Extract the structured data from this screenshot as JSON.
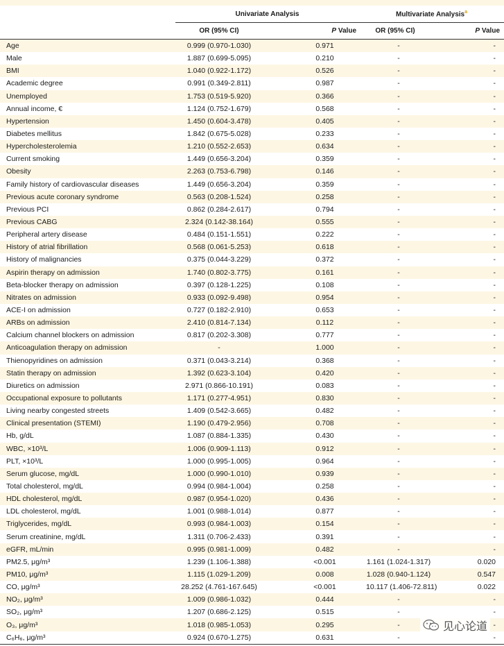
{
  "header": {
    "univariate": "Univariate Analysis",
    "multivariate": "Multivariate Analysis",
    "multivariate_mark": "a",
    "or_ci": "OR (95% CI)",
    "p_value_p": "P",
    "p_value_rest": " Value"
  },
  "rows": [
    {
      "var": "Age",
      "or": "0.999 (0.970-1.030)",
      "p": "0.971",
      "mor": "-",
      "mp": "-"
    },
    {
      "var": "Male",
      "or": "1.887 (0.699-5.095)",
      "p": "0.210",
      "mor": "-",
      "mp": "-"
    },
    {
      "var": "BMI",
      "or": "1.040 (0.922-1.172)",
      "p": "0.526",
      "mor": "-",
      "mp": "-"
    },
    {
      "var": "Academic degree",
      "or": "0.991 (0.349-2.811)",
      "p": "0.987",
      "mor": "-",
      "mp": "-"
    },
    {
      "var": "Unemployed",
      "or": "1.753 (0.519-5.920)",
      "p": "0.366",
      "mor": "-",
      "mp": "-"
    },
    {
      "var": "Annual income, €",
      "or": "1.124 (0.752-1.679)",
      "p": "0.568",
      "mor": "-",
      "mp": "-"
    },
    {
      "var": "Hypertension",
      "or": "1.450 (0.604-3.478)",
      "p": "0.405",
      "mor": "-",
      "mp": "-"
    },
    {
      "var": "Diabetes mellitus",
      "or": "1.842 (0.675-5.028)",
      "p": "0.233",
      "mor": "-",
      "mp": "-"
    },
    {
      "var": "Hypercholesterolemia",
      "or": "1.210 (0.552-2.653)",
      "p": "0.634",
      "mor": "-",
      "mp": "-"
    },
    {
      "var": "Current smoking",
      "or": "1.449 (0.656-3.204)",
      "p": "0.359",
      "mor": "-",
      "mp": "-"
    },
    {
      "var": "Obesity",
      "or": "2.263 (0.753-6.798)",
      "p": "0.146",
      "mor": "-",
      "mp": "-"
    },
    {
      "var": "Family history of cardiovascular diseases",
      "or": "1.449 (0.656-3.204)",
      "p": "0.359",
      "mor": "-",
      "mp": "-"
    },
    {
      "var": "Previous acute coronary syndrome",
      "or": "0.563 (0.208-1.524)",
      "p": "0.258",
      "mor": "-",
      "mp": "-"
    },
    {
      "var": "Previous PCI",
      "or": "0.862 (0.284-2.617)",
      "p": "0.794",
      "mor": "-",
      "mp": "-"
    },
    {
      "var": "Previous CABG",
      "or": "2.324 (0.142-38.164)",
      "p": "0.555",
      "mor": "-",
      "mp": "-"
    },
    {
      "var": "Peripheral artery disease",
      "or": "0.484 (0.151-1.551)",
      "p": "0.222",
      "mor": "-",
      "mp": "-"
    },
    {
      "var": "History of atrial fibrillation",
      "or": "0.568 (0.061-5.253)",
      "p": "0.618",
      "mor": "-",
      "mp": "-"
    },
    {
      "var": "History of malignancies",
      "or": "0.375 (0.044-3.229)",
      "p": "0.372",
      "mor": "-",
      "mp": "-"
    },
    {
      "var": "Aspirin therapy on admission",
      "or": "1.740 (0.802-3.775)",
      "p": "0.161",
      "mor": "-",
      "mp": "-"
    },
    {
      "var": "Beta-blocker therapy on admission",
      "or": "0.397 (0.128-1.225)",
      "p": "0.108",
      "mor": "-",
      "mp": "-"
    },
    {
      "var": "Nitrates on admission",
      "or": "0.933 (0.092-9.498)",
      "p": "0.954",
      "mor": "-",
      "mp": "-"
    },
    {
      "var": "ACE-I on admission",
      "or": "0.727 (0.182-2.910)",
      "p": "0.653",
      "mor": "-",
      "mp": "-"
    },
    {
      "var": "ARBs on admission",
      "or": "2.410 (0.814-7.134)",
      "p": "0.112",
      "mor": "-",
      "mp": "-"
    },
    {
      "var": "Calcium channel blockers on admission",
      "or": "0.817 (0.202-3.308)",
      "p": "0.777",
      "mor": "-",
      "mp": "-"
    },
    {
      "var": "Anticoagulation therapy on admission",
      "or": "-",
      "p": "1.000",
      "mor": "-",
      "mp": "-"
    },
    {
      "var": "Thienopyridines on admission",
      "or": "0.371 (0.043-3.214)",
      "p": "0.368",
      "mor": "-",
      "mp": "-"
    },
    {
      "var": "Statin therapy on admission",
      "or": "1.392 (0.623-3.104)",
      "p": "0.420",
      "mor": "-",
      "mp": "-"
    },
    {
      "var": "Diuretics on admission",
      "or": "2.971 (0.866-10.191)",
      "p": "0.083",
      "mor": "-",
      "mp": "-"
    },
    {
      "var": "Occupational exposure to pollutants",
      "or": "1.171 (0.277-4.951)",
      "p": "0.830",
      "mor": "-",
      "mp": "-"
    },
    {
      "var": "Living nearby congested streets",
      "or": "1.409 (0.542-3.665)",
      "p": "0.482",
      "mor": "-",
      "mp": "-"
    },
    {
      "var": "Clinical presentation (STEMI)",
      "or": "1.190 (0.479-2.956)",
      "p": "0.708",
      "mor": "-",
      "mp": "-"
    },
    {
      "var": "Hb, g/dL",
      "or": "1.087 (0.884-1.335)",
      "p": "0.430",
      "mor": "-",
      "mp": "-"
    },
    {
      "var": "WBC, ×10³/L",
      "or": "1.006 (0.909-1.113)",
      "p": "0.912",
      "mor": "-",
      "mp": "-"
    },
    {
      "var": "PLT, ×10³/L",
      "or": "1.000 (0.995-1.005)",
      "p": "0.964",
      "mor": "-",
      "mp": "-"
    },
    {
      "var": "Serum glucose, mg/dL",
      "or": "1.000 (0.990-1.010)",
      "p": "0.939",
      "mor": "-",
      "mp": "-"
    },
    {
      "var": "Total cholesterol, mg/dL",
      "or": "0.994 (0.984-1.004)",
      "p": "0.258",
      "mor": "-",
      "mp": "-"
    },
    {
      "var": "HDL cholesterol, mg/dL",
      "or": "0.987 (0.954-1.020)",
      "p": "0.436",
      "mor": "-",
      "mp": "-"
    },
    {
      "var": "LDL cholesterol, mg/dL",
      "or": "1.001 (0.988-1.014)",
      "p": "0.877",
      "mor": "-",
      "mp": "-"
    },
    {
      "var": "Triglycerides, mg/dL",
      "or": "0.993 (0.984-1.003)",
      "p": "0.154",
      "mor": "-",
      "mp": "-"
    },
    {
      "var": "Serum creatinine, mg/dL",
      "or": "1.311 (0.706-2.433)",
      "p": "0.391",
      "mor": "-",
      "mp": "-"
    },
    {
      "var": "eGFR, mL/min",
      "or": "0.995 (0.981-1.009)",
      "p": "0.482",
      "mor": "-",
      "mp": "-"
    },
    {
      "var": "PM2.5, μg/m³",
      "or": "1.239 (1.106-1.388)",
      "p": "<0.001",
      "mor": "1.161 (1.024-1.317)",
      "mp": "0.020"
    },
    {
      "var": "PM10, μg/m³",
      "or": "1.115 (1.029-1.209)",
      "p": "0.008",
      "mor": "1.028 (0.940-1.124)",
      "mp": "0.547"
    },
    {
      "var": "CO, μg/m³",
      "or": "28.252 (4.761-167.645)",
      "p": "<0.001",
      "mor": "10.117 (1.406-72.811)",
      "mp": "0.022"
    },
    {
      "var": "NO₂, μg/m³",
      "or": "1.009 (0.986-1.032)",
      "p": "0.444",
      "mor": "-",
      "mp": "-"
    },
    {
      "var": "SO₂, μg/m³",
      "or": "1.207 (0.686-2.125)",
      "p": "0.515",
      "mor": "-",
      "mp": "-"
    },
    {
      "var": "O₃, μg/m³",
      "or": "1.018 (0.985-1.053)",
      "p": "0.295",
      "mor": "-",
      "mp": "-"
    },
    {
      "var": "C₆H₆, μg/m³",
      "or": "0.924 (0.670-1.275)",
      "p": "0.631",
      "mor": "-",
      "mp": "-"
    }
  ],
  "watermark": {
    "text": "见心论道",
    "icon": "wechat-icon"
  }
}
